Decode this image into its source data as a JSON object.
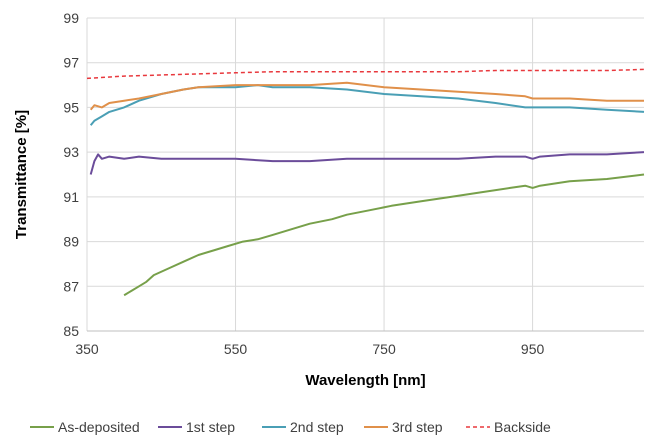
{
  "chart_data": {
    "type": "line",
    "title": "",
    "xlabel": "Wavelength [nm]",
    "ylabel": "Transmittance [%]",
    "xlim": [
      350,
      1100
    ],
    "ylim": [
      85,
      99
    ],
    "x_ticks": [
      350,
      550,
      750,
      950
    ],
    "y_ticks": [
      85,
      87,
      89,
      91,
      93,
      95,
      97,
      99
    ],
    "grid": true,
    "legend_position": "bottom",
    "series": [
      {
        "name": "As-deposited",
        "color": "#77a04a",
        "dashed": false,
        "x": [
          400,
          410,
          420,
          430,
          440,
          460,
          480,
          500,
          520,
          540,
          560,
          580,
          600,
          620,
          650,
          680,
          700,
          730,
          760,
          800,
          840,
          880,
          920,
          940,
          950,
          960,
          1000,
          1050,
          1100
        ],
        "y": [
          86.6,
          86.8,
          87.0,
          87.2,
          87.5,
          87.8,
          88.1,
          88.4,
          88.6,
          88.8,
          89.0,
          89.1,
          89.3,
          89.5,
          89.8,
          90.0,
          90.2,
          90.4,
          90.6,
          90.8,
          91.0,
          91.2,
          91.4,
          91.5,
          91.4,
          91.5,
          91.7,
          91.8,
          92.0
        ]
      },
      {
        "name": "1st step",
        "color": "#6b4c9a",
        "dashed": false,
        "x": [
          355,
          360,
          365,
          370,
          380,
          400,
          420,
          450,
          500,
          550,
          600,
          650,
          700,
          750,
          800,
          850,
          900,
          940,
          950,
          960,
          1000,
          1050,
          1100
        ],
        "y": [
          92.0,
          92.6,
          92.9,
          92.7,
          92.8,
          92.7,
          92.8,
          92.7,
          92.7,
          92.7,
          92.6,
          92.6,
          92.7,
          92.7,
          92.7,
          92.7,
          92.8,
          92.8,
          92.7,
          92.8,
          92.9,
          92.9,
          93.0
        ]
      },
      {
        "name": "2nd step",
        "color": "#4a9fb5",
        "dashed": false,
        "x": [
          355,
          360,
          370,
          380,
          400,
          420,
          450,
          480,
          500,
          550,
          580,
          600,
          620,
          650,
          700,
          750,
          800,
          850,
          900,
          940,
          950,
          1000,
          1050,
          1100
        ],
        "y": [
          94.2,
          94.4,
          94.6,
          94.8,
          95.0,
          95.3,
          95.6,
          95.8,
          95.9,
          95.9,
          96.0,
          95.9,
          95.9,
          95.9,
          95.8,
          95.6,
          95.5,
          95.4,
          95.2,
          95.0,
          95.0,
          95.0,
          94.9,
          94.8
        ]
      },
      {
        "name": "3rd step",
        "color": "#e0904a",
        "dashed": false,
        "x": [
          355,
          360,
          370,
          380,
          400,
          420,
          450,
          480,
          500,
          550,
          580,
          600,
          620,
          650,
          700,
          750,
          800,
          850,
          900,
          940,
          950,
          1000,
          1050,
          1100
        ],
        "y": [
          94.9,
          95.1,
          95.0,
          95.2,
          95.3,
          95.4,
          95.6,
          95.8,
          95.9,
          96.0,
          96.0,
          96.0,
          96.0,
          96.0,
          96.1,
          95.9,
          95.8,
          95.7,
          95.6,
          95.5,
          95.4,
          95.4,
          95.3,
          95.3
        ]
      },
      {
        "name": "Backside",
        "color": "#e8383d",
        "dashed": true,
        "x": [
          350,
          400,
          450,
          500,
          550,
          600,
          650,
          700,
          750,
          800,
          850,
          900,
          950,
          1000,
          1050,
          1100
        ],
        "y": [
          96.3,
          96.4,
          96.45,
          96.5,
          96.55,
          96.6,
          96.6,
          96.6,
          96.6,
          96.6,
          96.6,
          96.65,
          96.65,
          96.65,
          96.65,
          96.7
        ]
      }
    ]
  }
}
